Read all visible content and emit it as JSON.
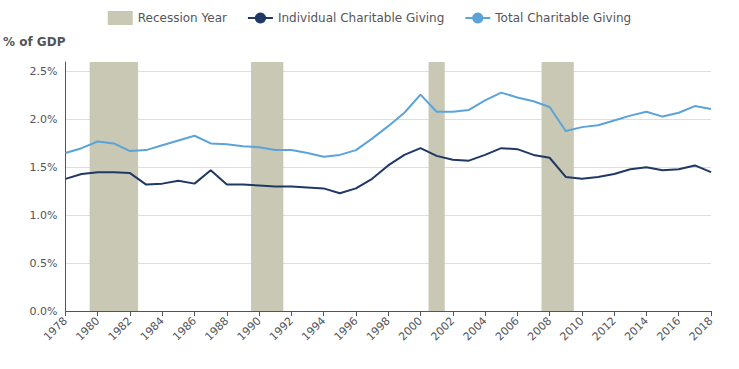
{
  "chart_data": {
    "type": "line",
    "ylabel": "% of GDP",
    "x": [
      1978,
      1979,
      1980,
      1981,
      1982,
      1983,
      1984,
      1985,
      1986,
      1987,
      1988,
      1989,
      1990,
      1991,
      1992,
      1993,
      1994,
      1995,
      1996,
      1997,
      1998,
      1999,
      2000,
      2001,
      2002,
      2003,
      2004,
      2005,
      2006,
      2007,
      2008,
      2009,
      2010,
      2011,
      2012,
      2013,
      2014,
      2015,
      2016,
      2017,
      2018
    ],
    "series": [
      {
        "name": "Individual Charitable Giving",
        "color": "#1f3864",
        "values": [
          0.0138,
          0.0143,
          0.0145,
          0.0145,
          0.0144,
          0.0132,
          0.0133,
          0.0136,
          0.0133,
          0.0147,
          0.0132,
          0.0132,
          0.0131,
          0.013,
          0.013,
          0.0129,
          0.0128,
          0.0123,
          0.0128,
          0.0138,
          0.0152,
          0.0163,
          0.017,
          0.0162,
          0.0158,
          0.0157,
          0.0163,
          0.017,
          0.0169,
          0.0163,
          0.016,
          0.014,
          0.0138,
          0.014,
          0.0143,
          0.0148,
          0.015,
          0.0147,
          0.0148,
          0.0152,
          0.0145
        ]
      },
      {
        "name": "Total Charitable Giving",
        "color": "#5ba3d9",
        "values": [
          0.0165,
          0.017,
          0.0177,
          0.0175,
          0.0167,
          0.0168,
          0.0173,
          0.0178,
          0.0183,
          0.0175,
          0.0174,
          0.0172,
          0.0171,
          0.0168,
          0.0168,
          0.0165,
          0.0161,
          0.0163,
          0.0168,
          0.018,
          0.0193,
          0.0207,
          0.0226,
          0.0208,
          0.0208,
          0.021,
          0.022,
          0.0228,
          0.0223,
          0.0219,
          0.0213,
          0.0188,
          0.0192,
          0.0194,
          0.0199,
          0.0204,
          0.0208,
          0.0203,
          0.0207,
          0.0214,
          0.0211
        ]
      }
    ],
    "recession_bands": {
      "name": "Recession Year",
      "color": "#c8c8b4",
      "ranges": [
        [
          1979.5,
          1982.5
        ],
        [
          1989.5,
          1991.5
        ],
        [
          2000.5,
          2001.5
        ],
        [
          2007.5,
          2009.5
        ]
      ]
    },
    "xlim": [
      1978,
      2018
    ],
    "xticks": [
      1978,
      1980,
      1982,
      1984,
      1986,
      1988,
      1990,
      1992,
      1994,
      1996,
      1998,
      2000,
      2002,
      2004,
      2006,
      2008,
      2010,
      2012,
      2014,
      2016,
      2018
    ],
    "ylim": [
      0.0,
      0.026
    ],
    "yticks": [
      {
        "value": 0.0,
        "label": "0.0%"
      },
      {
        "value": 0.005,
        "label": "0.5%"
      },
      {
        "value": 0.01,
        "label": "1.0%"
      },
      {
        "value": 0.015,
        "label": "1.5%"
      },
      {
        "value": 0.02,
        "label": "2.0%"
      },
      {
        "value": 0.025,
        "label": "2.5%"
      }
    ],
    "grid": true,
    "legend": "top"
  }
}
